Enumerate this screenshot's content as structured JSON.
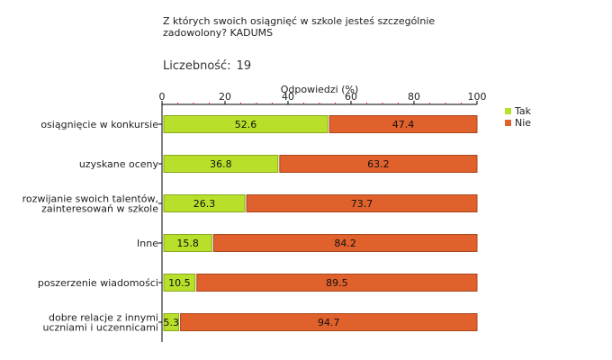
{
  "title": "Z których swoich osiągnięć w szkole jesteś szczególnie zadowolony? KADUMS",
  "count_label": "Liczebność:",
  "count_value": "19",
  "chart_data": {
    "type": "bar",
    "orientation": "horizontal",
    "stacked": true,
    "xlabel": "Odpowiedzi (%)",
    "xlim": [
      0,
      100
    ],
    "xticks": [
      0,
      20,
      40,
      60,
      80,
      100
    ],
    "legend_position": "right",
    "categories": [
      [
        "osiągnięcie w konkursie"
      ],
      [
        "uzyskane oceny"
      ],
      [
        "rozwijanie swoich talentów,",
        "zainteresowań w szkole"
      ],
      [
        "Inne"
      ],
      [
        "poszerzenie wiadomości"
      ],
      [
        "dobre relacje z innymi",
        "uczniami i uczennicami"
      ]
    ],
    "series": [
      {
        "name": "Tak",
        "color": "#b8e02a",
        "values": [
          52.6,
          36.8,
          26.3,
          15.8,
          10.5,
          5.3
        ]
      },
      {
        "name": "Nie",
        "color": "#e0612c",
        "values": [
          47.4,
          63.2,
          73.7,
          84.2,
          89.5,
          94.7
        ]
      }
    ]
  }
}
